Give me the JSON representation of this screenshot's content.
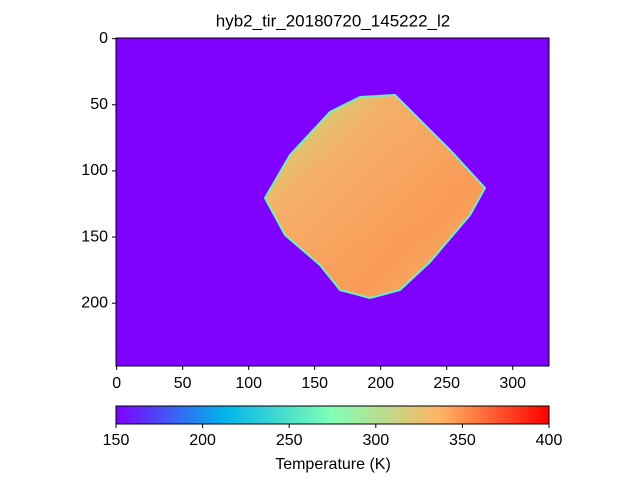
{
  "chart_data": {
    "type": "image",
    "title": "hyb2_tir_20180720_145222_l2",
    "xlim": [
      -0.5,
      327.5
    ],
    "xticks": [
      0,
      50,
      100,
      150,
      200,
      250,
      300
    ],
    "ylim": [
      247.5,
      -0.5
    ],
    "yticks": [
      0,
      50,
      100,
      150,
      200
    ],
    "background_color": "#8000ff",
    "colorbar": {
      "label": "Temperature (K)",
      "colormap": "rainbow",
      "lim": [
        150,
        400
      ],
      "ticks": [
        150,
        200,
        250,
        300,
        350,
        400
      ]
    }
  }
}
